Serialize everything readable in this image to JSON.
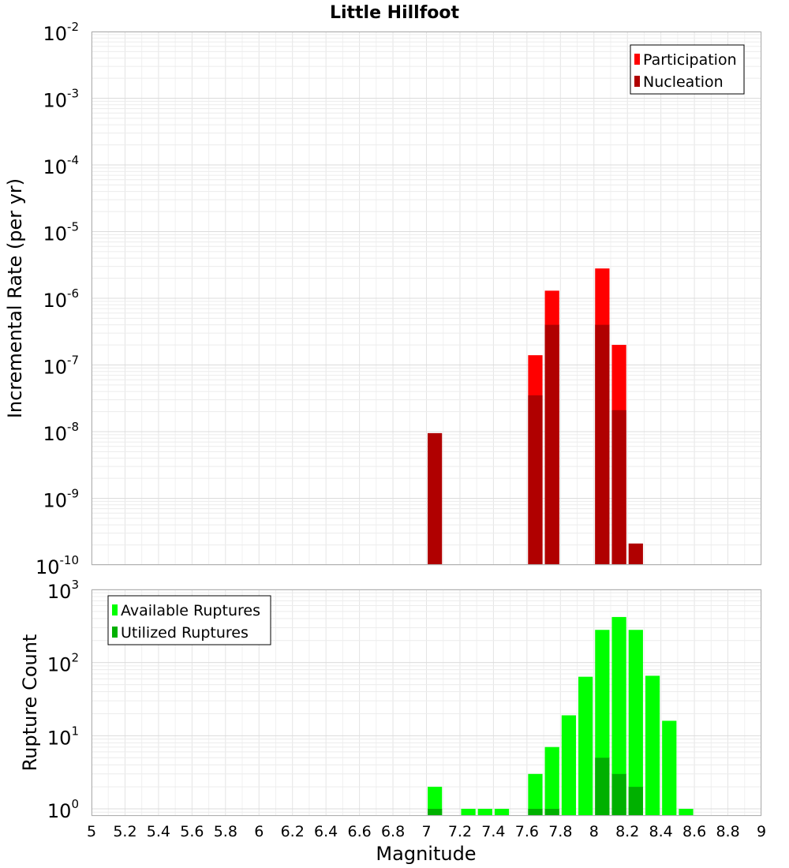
{
  "chart_data": [
    {
      "type": "bar",
      "title": "Little Hillfoot",
      "xlabel": "",
      "ylabel": "Incremental Rate (per yr)",
      "yscale": "log",
      "ylim": [
        1e-10,
        0.01
      ],
      "xlim": [
        5,
        9
      ],
      "bin_width": 0.1,
      "grid": true,
      "legend_position": "top-right",
      "series": [
        {
          "name": "Participation",
          "color": "#ff0000",
          "x": [
            7.65,
            7.75,
            8.05,
            8.15
          ],
          "values": [
            1.4e-07,
            1.3e-06,
            2.8e-06,
            2e-07
          ]
        },
        {
          "name": "Nucleation",
          "color": "#b00000",
          "x": [
            7.05,
            7.65,
            7.75,
            8.05,
            8.15,
            8.25
          ],
          "values": [
            9.5e-09,
            3.5e-08,
            4e-07,
            4e-07,
            2.1e-08,
            2.1e-10
          ]
        }
      ]
    },
    {
      "type": "bar",
      "title": "",
      "xlabel": "Magnitude",
      "ylabel": "Rupture Count",
      "yscale": "log",
      "ylim": [
        0.8,
        1000
      ],
      "xlim": [
        5,
        9
      ],
      "bin_width": 0.1,
      "grid": true,
      "legend_position": "top-left",
      "x_ticks": [
        "5",
        "5.2",
        "5.4",
        "5.6",
        "5.8",
        "6",
        "6.2",
        "6.4",
        "6.6",
        "6.8",
        "7",
        "7.2",
        "7.4",
        "7.6",
        "7.8",
        "8",
        "8.2",
        "8.4",
        "8.6",
        "8.8",
        "9"
      ],
      "series": [
        {
          "name": "Available Ruptures",
          "color": "#00ff00",
          "x": [
            7.05,
            7.25,
            7.35,
            7.45,
            7.65,
            7.75,
            7.85,
            7.95,
            8.05,
            8.15,
            8.25,
            8.35,
            8.45,
            8.55
          ],
          "values": [
            2,
            1,
            1,
            1,
            3,
            7,
            19,
            64,
            280,
            420,
            280,
            66,
            16,
            1
          ]
        },
        {
          "name": "Utilized Ruptures",
          "color": "#00b000",
          "x": [
            7.05,
            7.65,
            7.75,
            8.05,
            8.15,
            8.25
          ],
          "values": [
            1,
            1,
            1,
            5,
            3,
            2
          ]
        }
      ]
    }
  ]
}
